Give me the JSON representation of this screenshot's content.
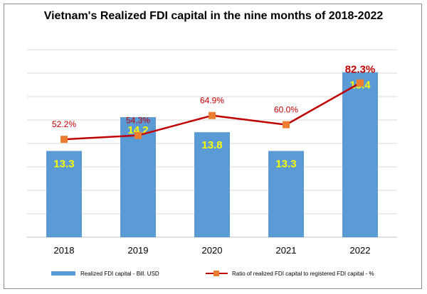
{
  "chart_data": {
    "type": "bar",
    "title": "Vietnam's Realized FDI capital in the nine months of 2018-2022",
    "categories": [
      "2018",
      "2019",
      "2020",
      "2021",
      "2022"
    ],
    "series": [
      {
        "name": "Realized FDI capital - Bill. USD",
        "type": "bar",
        "axis": "primary",
        "color": "#5b9bd5",
        "values": [
          13.3,
          14.2,
          13.8,
          13.3,
          15.4
        ],
        "labels": [
          "13.3",
          "14.2",
          "13.8",
          "13.3",
          "15.4"
        ]
      },
      {
        "name": "Ratio of realized FDI capital to registered FDI capital - %",
        "type": "line",
        "axis": "secondary",
        "color": "#c00000",
        "marker_color": "#ed7d31",
        "values": [
          52.2,
          54.3,
          64.9,
          60.0,
          82.3
        ],
        "labels": [
          "52.2%",
          "54.3%",
          "64.9%",
          "60.0%",
          "82.3%"
        ]
      }
    ],
    "ylim": [
      11.0,
      16.0
    ],
    "y2lim": [
      0,
      100
    ],
    "grid": true,
    "legend_position": "bottom"
  }
}
